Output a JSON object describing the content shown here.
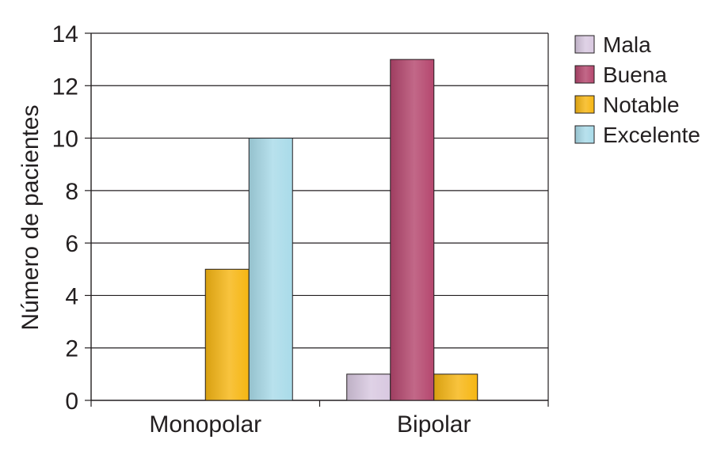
{
  "chart_data": {
    "type": "bar",
    "title": "",
    "xlabel": "",
    "ylabel": "Número de pacientes",
    "ylim": [
      0,
      14
    ],
    "yticks": [
      0,
      2,
      4,
      6,
      8,
      10,
      12,
      14
    ],
    "grid": true,
    "legend_position": "right",
    "categories": [
      "Monopolar",
      "Bipolar"
    ],
    "series": [
      {
        "name": "Mala",
        "values": [
          0,
          1
        ],
        "color": "#d8c8e0"
      },
      {
        "name": "Buena",
        "values": [
          0,
          13
        ],
        "color": "#b5476e"
      },
      {
        "name": "Notable",
        "values": [
          5,
          1
        ],
        "color": "#f6b613"
      },
      {
        "name": "Excelente",
        "values": [
          10,
          0
        ],
        "color": "#a9dbe9"
      }
    ]
  }
}
